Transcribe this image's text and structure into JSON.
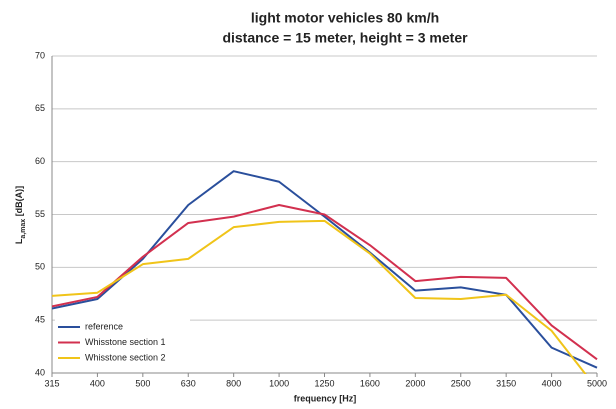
{
  "chart_data": {
    "type": "line",
    "title": [
      "light motor vehicles 80 km/h",
      "distance = 15 meter, height = 3 meter"
    ],
    "xlabel": "frequency [Hz]",
    "ylabel": {
      "main": "L",
      "sub": "a,max",
      "unit": " [dB(A)]"
    },
    "categories": [
      "315",
      "400",
      "500",
      "630",
      "800",
      "1000",
      "1250",
      "1600",
      "2000",
      "2500",
      "3150",
      "4000",
      "5000"
    ],
    "series": [
      {
        "name": "reference",
        "color": "#2a4f9c",
        "values": [
          46.1,
          47.0,
          50.8,
          55.9,
          59.1,
          58.1,
          54.8,
          51.4,
          47.8,
          48.1,
          47.4,
          42.4,
          40.5
        ]
      },
      {
        "name": "Whisstone section 1",
        "color": "#d2304f",
        "values": [
          46.3,
          47.2,
          51.0,
          54.2,
          54.8,
          55.9,
          55.0,
          52.1,
          48.7,
          49.1,
          49.0,
          44.5,
          41.3
        ]
      },
      {
        "name": "Whisstone section 2",
        "color": "#f0c419",
        "values": [
          47.3,
          47.6,
          50.3,
          50.8,
          53.8,
          54.3,
          54.4,
          51.3,
          47.1,
          47.0,
          47.4,
          44.0,
          38.5
        ]
      }
    ],
    "ylim": [
      40,
      70
    ],
    "yticks": [
      40,
      45,
      50,
      55,
      60,
      65,
      70
    ],
    "grid": true,
    "legend": "lower left"
  }
}
